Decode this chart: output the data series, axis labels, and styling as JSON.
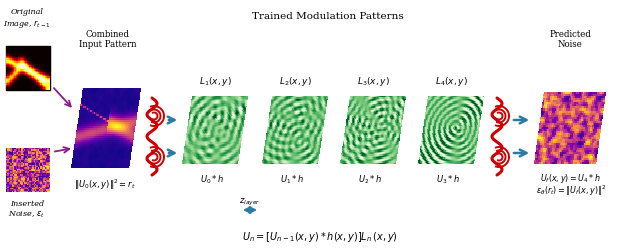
{
  "title": "Trained Modulation Patterns",
  "fig_bg": "#ffffff",
  "arrow_color": "#2a7ba3",
  "wave_color": "#cc0000",
  "purple_arrow_color": "#8b1a8b",
  "label_orig": "Original\nImage, $r_{t-1}$",
  "label_noise": "Inserted\nNoise, $\\epsilon_t$",
  "label_combined": "Combined\nInput Pattern",
  "label_predicted": "Predicted\nNoise",
  "panel_labels": [
    "$L_1(x,y)$",
    "$L_2(x,y)$",
    "$L_3(x,y)$",
    "$L_4(x,y)$"
  ],
  "bottom_labels_mod": [
    "$U_0 * h$",
    "$U_1 * h$",
    "$U_2 * h$",
    "$U_3 * h$"
  ],
  "eq_left": "$\\|U_0(x,y)\\|^2 = r_t$",
  "eq_right_1": "$U_f(x,y) = U_4 * h$",
  "eq_right_2": "$\\epsilon_\\theta(r_t) = \\|U_f(x,y)\\|^2$",
  "eq_bottom": "$U_n = [U_{n-1}(x,y) * h(x,y)]L_n\\,(x,y)$",
  "zlayer_label": "$z_{layer}$"
}
